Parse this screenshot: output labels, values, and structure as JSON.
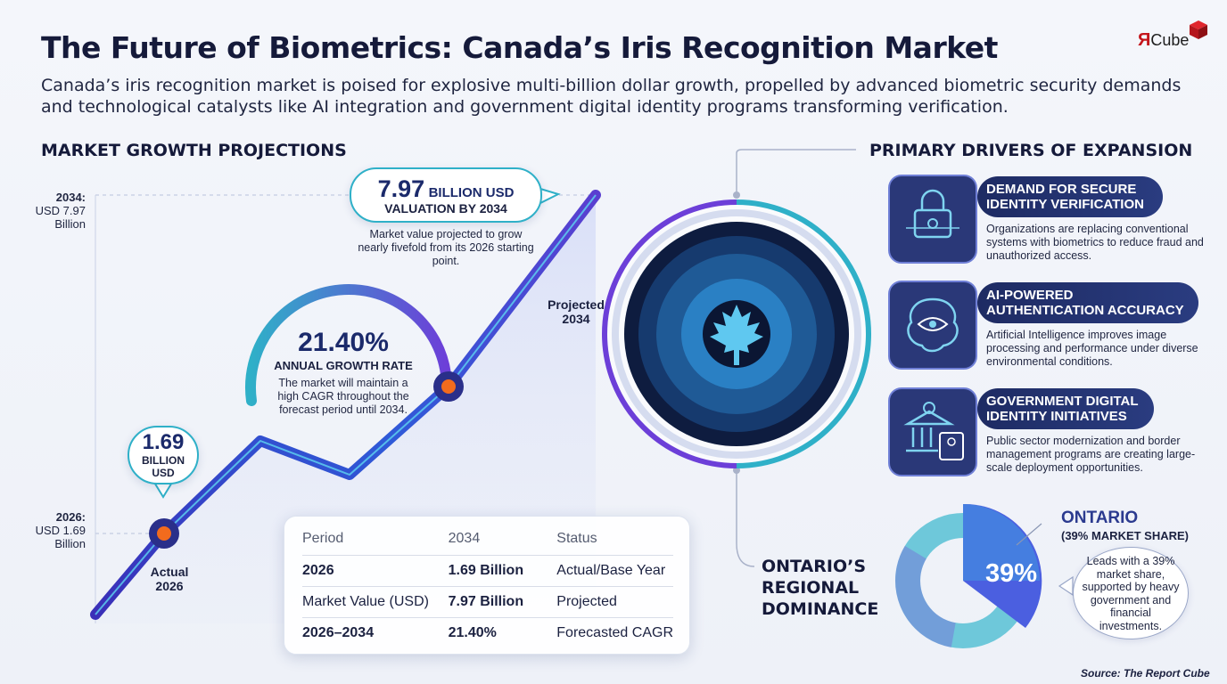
{
  "header": {
    "title": "The Future of Biometrics: Canada’s Iris Recognition Market",
    "subtitle": "Canada’s iris recognition market is poised for explosive multi-billion dollar growth, propelled by advanced biometric security demands and technological catalysts like AI integration and government digital identity programs transforming verification.",
    "logo_r": "Я",
    "logo_text": "Cube"
  },
  "market": {
    "heading": "MARKET GROWTH PROJECTIONS",
    "axis_top": {
      "year": "2034:",
      "value_line1": "USD 7.97",
      "value_line2": "Billion"
    },
    "axis_bottom": {
      "year": "2026:",
      "value_line1": "USD 1.69",
      "value_line2": "Billion"
    },
    "callout_2034": {
      "value": "7.97",
      "unit": "BILLION USD",
      "label": "VALUATION BY 2034",
      "note": "Market value projected to grow nearly fivefold from its 2026 starting point."
    },
    "callout_2026": {
      "value": "1.69",
      "unit_line1": "BILLION",
      "unit_line2": "USD"
    },
    "cagr": {
      "value": "21.40%",
      "label": "ANNUAL GROWTH RATE",
      "note": "The market will maintain a high CAGR throughout the forecast period until 2034."
    },
    "point_labels": {
      "projected_line1": "Projected",
      "projected_line2": "2034",
      "actual_line1": "Actual",
      "actual_line2": "2026"
    }
  },
  "table": {
    "headers": [
      "Period",
      "2034",
      "Status"
    ],
    "rows": [
      [
        "2026",
        "1.69 Billion",
        "Actual/Base Year"
      ],
      [
        "Market Value (USD)",
        "7.97 Billion",
        "Projected"
      ],
      [
        "2026–2034",
        "21.40%",
        "Forecasted CAGR"
      ]
    ]
  },
  "drivers": {
    "heading": "PRIMARY DRIVERS OF EXPANSION",
    "items": [
      {
        "title_line1": "DEMAND FOR SECURE",
        "title_line2": "IDENTITY VERIFICATION",
        "desc": "Organizations are replacing conventional systems with biometrics to reduce fraud and unauthorized access.",
        "icon": "fingerprint-lock-icon"
      },
      {
        "title_line1": "AI-POWERED",
        "title_line2": "AUTHENTICATION ACCURACY",
        "desc": "Artificial Intelligence improves image processing and performance under diverse environmental conditions.",
        "icon": "ai-brain-eye-icon"
      },
      {
        "title_line1": "GOVERNMENT DIGITAL",
        "title_line2": "IDENTITY INITIATIVES",
        "desc": "Public sector modernization and border management programs are creating large-scale deployment opportunities.",
        "icon": "government-id-icon"
      }
    ]
  },
  "ontario": {
    "heading_line1": "ONTARIO’S",
    "heading_line2": "REGIONAL",
    "heading_line3": "DOMINANCE",
    "title": "ONTARIO",
    "share_label": "(39% MARKET SHARE)",
    "donut_value": "39%",
    "note": "Leads with a 39% market share, supported by heavy government and financial investments."
  },
  "source": "Source: The Report Cube",
  "colors": {
    "navy": "#1b2a6b",
    "line_blue": "#2f4fd8",
    "teal": "#2fb0c8",
    "orange": "#f26b1d",
    "purple": "#7b4fd8"
  },
  "chart_data": [
    {
      "type": "line",
      "title": "MARKET GROWTH PROJECTIONS",
      "x": [
        "2026",
        "2034"
      ],
      "series": [
        {
          "values": [
            1.69,
            7.97
          ]
        }
      ],
      "ylabel": "",
      "xlabel": "",
      "annotations": [
        "21.40% ANNUAL GROWTH RATE"
      ],
      "grid": false
    },
    {
      "type": "pie",
      "title": "ONTARIO",
      "categories": [
        "ONTARIO",
        ""
      ],
      "values": [
        39,
        61
      ]
    }
  ]
}
